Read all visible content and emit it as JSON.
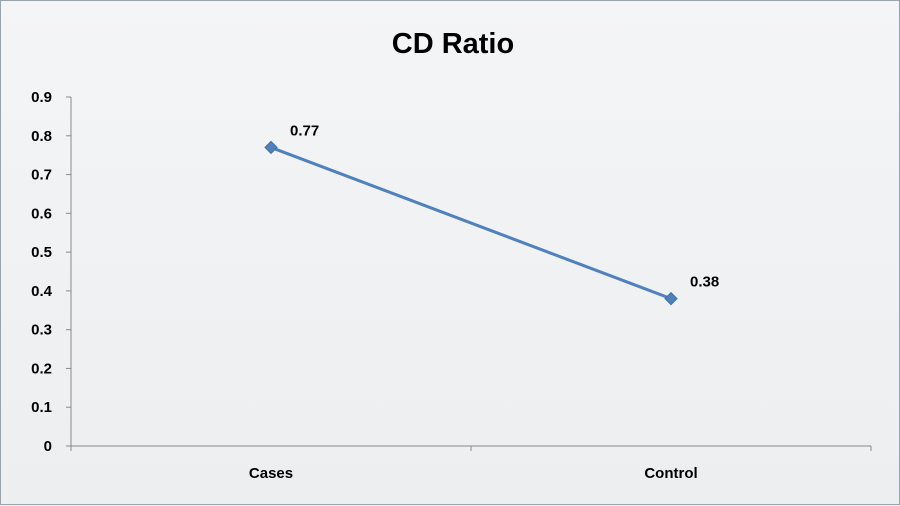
{
  "chart_data": {
    "type": "line",
    "title": "CD Ratio",
    "xlabel": "",
    "ylabel": "",
    "categories": [
      "Cases",
      "Control"
    ],
    "series": [
      {
        "values": [
          0.77,
          0.38
        ],
        "data_labels": [
          "0.77",
          "0.38"
        ],
        "color": "#4f81bd",
        "marker": "diamond"
      }
    ],
    "ylim": [
      0,
      0.9
    ],
    "yticks": [
      "0",
      "0.1",
      "0.2",
      "0.3",
      "0.4",
      "0.5",
      "0.6",
      "0.7",
      "0.8",
      "0.9"
    ],
    "grid": false,
    "legend": "none"
  }
}
